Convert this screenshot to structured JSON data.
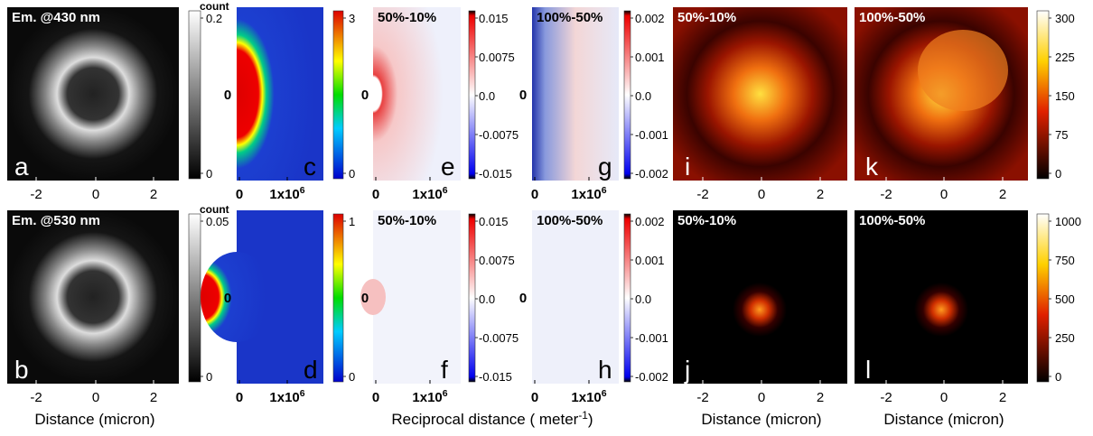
{
  "rows": [
    {
      "panels": [
        {
          "letter": "a",
          "title": "Em. @430 nm",
          "xticks": [
            "-2",
            "0",
            "2"
          ],
          "colorbar": {
            "title": "count",
            "ticks": [
              "0.2",
              "0"
            ]
          }
        },
        {
          "letter": "c",
          "yticks": [
            "0"
          ],
          "xticks": [
            "0",
            {
              "text": "1x10",
              "sup": "6"
            }
          ],
          "colorbar": {
            "ticks": [
              "3",
              "0"
            ]
          }
        },
        {
          "letter": "e",
          "title": "50%-10%",
          "yticks": [
            "0"
          ],
          "xticks": [
            "0",
            {
              "text": "1x10",
              "sup": "6"
            }
          ],
          "colorbar": {
            "ticks": [
              "0.015",
              "0.0075",
              "0.0",
              "-0.0075",
              "-0.015"
            ]
          }
        },
        {
          "letter": "g",
          "title": "100%-50%",
          "yticks": [
            "0"
          ],
          "xticks": [
            "0",
            {
              "text": "1x10",
              "sup": "6"
            }
          ],
          "colorbar": {
            "ticks": [
              "0.002",
              "0.001",
              "0.0",
              "-0.001",
              "-0.002"
            ]
          }
        },
        {
          "letter": "i",
          "title": "50%-10%",
          "xticks": [
            "-2",
            "0",
            "2"
          ]
        },
        {
          "letter": "k",
          "title": "100%-50%",
          "xticks": [
            "-2",
            "0",
            "2"
          ],
          "colorbar": {
            "ticks": [
              "300",
              "225",
              "150",
              "75",
              "0"
            ]
          }
        }
      ]
    },
    {
      "panels": [
        {
          "letter": "b",
          "title": "Em. @530 nm",
          "xticks": [
            "-2",
            "0",
            "2"
          ],
          "colorbar": {
            "title": "count",
            "ticks": [
              "0.05",
              "0"
            ]
          }
        },
        {
          "letter": "d",
          "yticks": [
            "0"
          ],
          "xticks": [
            "0",
            {
              "text": "1x10",
              "sup": "6"
            }
          ],
          "colorbar": {
            "ticks": [
              "1",
              "0"
            ]
          }
        },
        {
          "letter": "f",
          "title": "50%-10%",
          "yticks": [
            "0"
          ],
          "xticks": [
            "0",
            {
              "text": "1x10",
              "sup": "6"
            }
          ],
          "colorbar": {
            "ticks": [
              "0.015",
              "0.0075",
              "0.0",
              "-0.0075",
              "-0.015"
            ]
          }
        },
        {
          "letter": "h",
          "title": "100%-50%",
          "yticks": [
            "0"
          ],
          "xticks": [
            "0",
            {
              "text": "1x10",
              "sup": "6"
            }
          ],
          "colorbar": {
            "ticks": [
              "0.002",
              "0.001",
              "0.0",
              "-0.001",
              "-0.002"
            ]
          }
        },
        {
          "letter": "j",
          "title": "50%-10%",
          "xticks": [
            "-2",
            "0",
            "2"
          ]
        },
        {
          "letter": "l",
          "title": "100%-50%",
          "xticks": [
            "-2",
            "0",
            "2"
          ],
          "colorbar": {
            "ticks": [
              "1000",
              "750",
              "500",
              "250",
              "0"
            ]
          }
        }
      ]
    }
  ],
  "axis_labels": [
    {
      "text": "Distance (micron)"
    },
    {
      "text": "Reciprocal distance ( meter",
      "sup": "-1",
      "tail": ")"
    },
    {
      "text": "Distance (micron)"
    },
    {
      "text": "Distance (micron)"
    }
  ]
}
